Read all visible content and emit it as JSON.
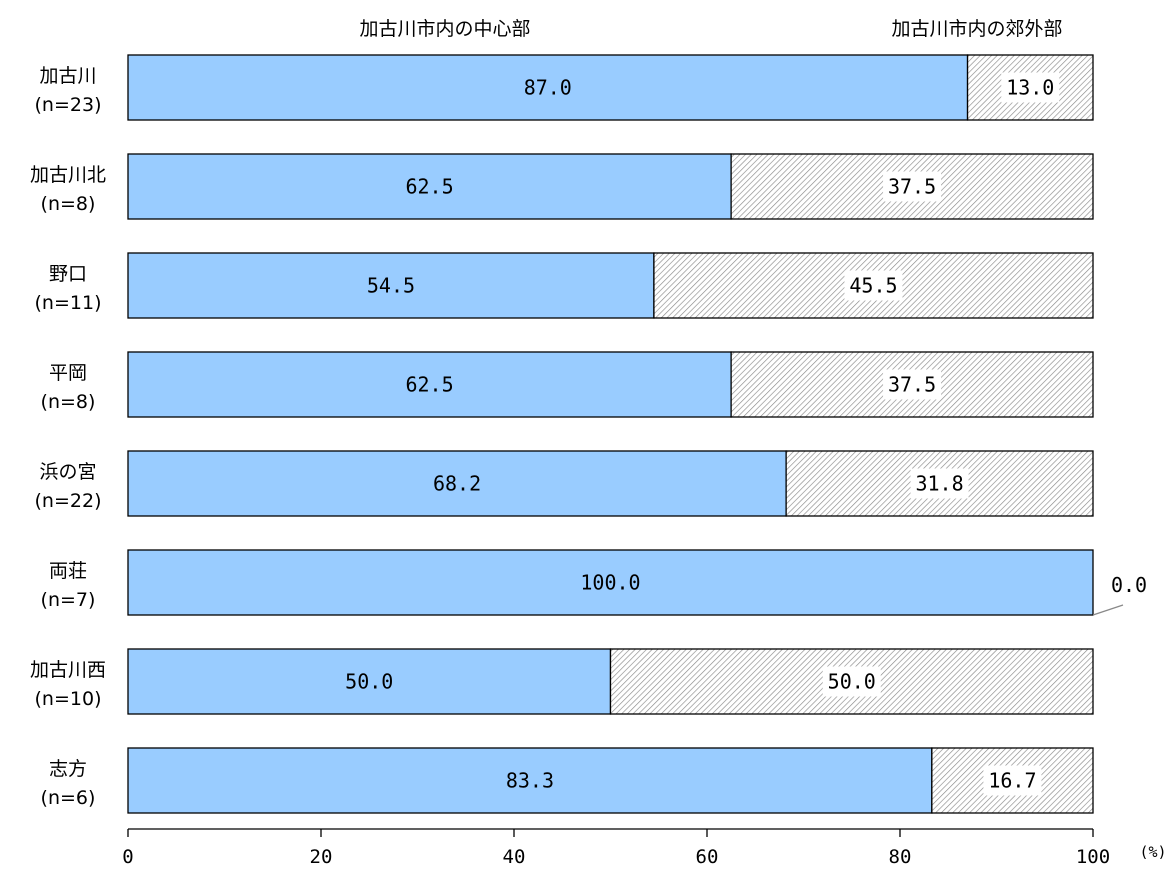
{
  "chart_data": {
    "type": "bar",
    "orientation": "horizontal",
    "stacked": true,
    "percent": true,
    "categories": [
      "加古川\n(n=23)",
      "加古川北\n(n=8)",
      "野口\n(n=11)",
      "平岡\n(n=8)",
      "浜の宮\n(n=22)",
      "両荘\n(n=7)",
      "加古川西\n(n=10)",
      "志方\n(n=6)"
    ],
    "category_names": [
      "加古川",
      "加古川北",
      "野口",
      "平岡",
      "浜の宮",
      "両荘",
      "加古川西",
      "志方"
    ],
    "category_counts": [
      "(n=23)",
      "(n=8)",
      "(n=11)",
      "(n=8)",
      "(n=22)",
      "(n=7)",
      "(n=10)",
      "(n=6)"
    ],
    "series": [
      {
        "name": "加古川市内の中心部",
        "values": [
          87.0,
          62.5,
          54.5,
          62.5,
          68.2,
          100.0,
          50.0,
          83.3
        ],
        "labels": [
          "87.0",
          "62.5",
          "54.5",
          "62.5",
          "68.2",
          "100.0",
          "50.0",
          "83.3"
        ],
        "color": "#99ccff",
        "pattern": "solid"
      },
      {
        "name": "加古川市内の郊外部",
        "values": [
          13.0,
          37.5,
          45.5,
          37.5,
          31.8,
          0.0,
          50.0,
          16.7
        ],
        "labels": [
          "13.0",
          "37.5",
          "45.5",
          "37.5",
          "31.8",
          "0.0",
          "50.0",
          "16.7"
        ],
        "color": "#ffffff",
        "pattern": "diagonal-hatch"
      }
    ],
    "xlim": [
      0,
      100
    ],
    "xticks": [
      "0",
      "20",
      "40",
      "60",
      "80",
      "100"
    ],
    "xunit": "(%)",
    "legend_position": "top",
    "grid": false
  }
}
